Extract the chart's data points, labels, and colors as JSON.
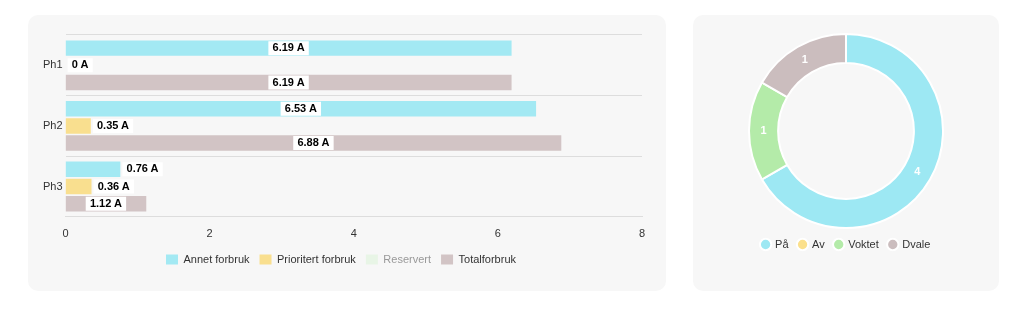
{
  "chart_data": [
    {
      "type": "bar",
      "orientation": "horizontal",
      "categories": [
        "Ph1",
        "Ph2",
        "Ph3"
      ],
      "series": [
        {
          "name": "Annet forbruk",
          "color": "#a3e9f3",
          "values": [
            6.19,
            6.53,
            0.76
          ],
          "value_labels": [
            "6.19 A",
            "6.53 A",
            "0.76 A"
          ]
        },
        {
          "name": "Prioritert forbruk",
          "color": "#f9df8f",
          "values": [
            0,
            0.35,
            0.36
          ],
          "value_labels": [
            "0 A",
            "0.35 A",
            "0.36 A"
          ]
        },
        {
          "name": "Reservert",
          "color": "#e8f5e6",
          "values": [
            null,
            null,
            null
          ]
        },
        {
          "name": "Totalforbruk",
          "color": "#d2c4c5",
          "values": [
            6.19,
            6.88,
            1.12
          ],
          "value_labels": [
            "6.19 A",
            "6.88 A",
            "1.12 A"
          ]
        }
      ],
      "xlim": [
        0,
        8
      ],
      "xticks": [
        0,
        2,
        4,
        6,
        8
      ],
      "grid": "y",
      "legend": "bottom"
    },
    {
      "type": "donut",
      "categories": [
        "På",
        "Av",
        "Voktet",
        "Dvale"
      ],
      "values": [
        4,
        0,
        1,
        1
      ],
      "colors": [
        "#9de8f3",
        "#fbe08c",
        "#b4eba9",
        "#cbbdbe"
      ],
      "data_labels": true,
      "legend": "bottom"
    }
  ]
}
